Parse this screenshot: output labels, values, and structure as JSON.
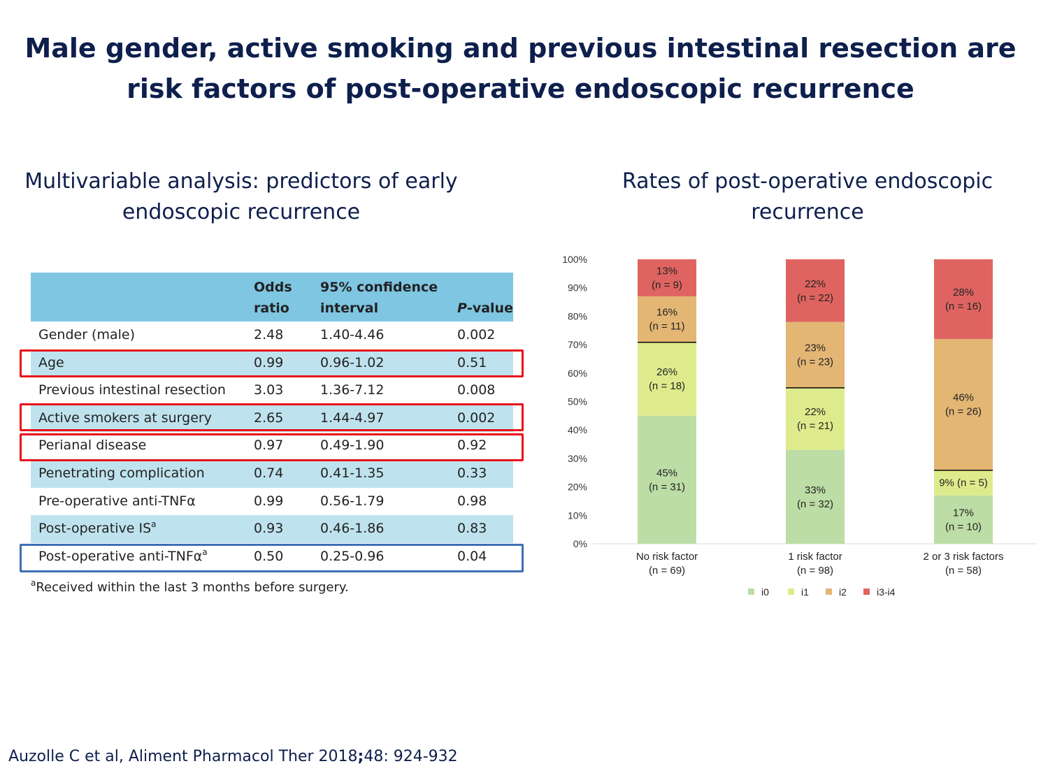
{
  "title": {
    "line1": "Male gender, active smoking and previous intestinal resection are",
    "line2": "risk factors of post-operative endoscopic recurrence"
  },
  "left_subtitle": {
    "line1": "Multivariable analysis: predictors of early",
    "line2": "endoscopic recurrence"
  },
  "right_subtitle": {
    "line1": "Rates of post-operative endoscopic",
    "line2": "recurrence"
  },
  "table": {
    "header": {
      "odds_line1": "Odds",
      "odds_line2": "ratio",
      "ci_line1": "95% confidence",
      "ci_line2": "interval",
      "p_italic": "P",
      "p_rest": "-value"
    },
    "rows": [
      {
        "label": "Gender (male)",
        "sup": "",
        "or": "2.48",
        "ci": "1.40-4.46",
        "p": "0.002"
      },
      {
        "label": "Age",
        "sup": "",
        "or": "0.99",
        "ci": "0.96-1.02",
        "p": "0.51"
      },
      {
        "label": "Previous intestinal resection",
        "sup": "",
        "or": "3.03",
        "ci": "1.36-7.12",
        "p": "0.008"
      },
      {
        "label": "Active smokers at surgery",
        "sup": "",
        "or": "2.65",
        "ci": "1.44-4.97",
        "p": "0.002"
      },
      {
        "label": "Perianal disease",
        "sup": "",
        "or": "0.97",
        "ci": "0.49-1.90",
        "p": "0.92"
      },
      {
        "label": "Penetrating complication",
        "sup": "",
        "or": "0.74",
        "ci": "0.41-1.35",
        "p": "0.33"
      },
      {
        "label": "Pre-operative anti-TNFα",
        "sup": "",
        "or": "0.99",
        "ci": "0.56-1.79",
        "p": "0.98"
      },
      {
        "label": "Post-operative IS",
        "sup": "a",
        "or": "0.93",
        "ci": "0.46-1.86",
        "p": "0.83"
      },
      {
        "label": "Post-operative anti-TNFα",
        "sup": "a",
        "or": "0.50",
        "ci": "0.25-0.96",
        "p": "0.04"
      }
    ],
    "footnote_sup": "a",
    "footnote": "Received within the last 3 months before surgery."
  },
  "citation": {
    "before": "Auzolle C et al, Aliment Pharmacol Ther 2018",
    "sep": ";",
    "after": "48: 924-932"
  },
  "colors": {
    "title": "#0e1f4d",
    "table_header": "#7ec6e2",
    "table_shade": "#bfe3ee",
    "highlight_red": "#e8141b",
    "highlight_blue": "#3d6fb4",
    "i0": "#bcdda6",
    "i1": "#deeb8c",
    "i2": "#e3b674",
    "i3_i4": "#df6461"
  },
  "chart_data": {
    "type": "bar",
    "stacked": true,
    "ylim": [
      0,
      100
    ],
    "yticks": [
      "0%",
      "10%",
      "20%",
      "30%",
      "40%",
      "50%",
      "60%",
      "70%",
      "80%",
      "90%",
      "100%"
    ],
    "categories": [
      {
        "line1": "No risk factor",
        "line2": "(n = 69)"
      },
      {
        "line1": "1 risk factor",
        "line2": "(n = 98)"
      },
      {
        "line1": "2 or 3 risk factors",
        "line2": "(n = 58)"
      }
    ],
    "series": [
      {
        "name": "i0",
        "values": [
          45,
          33,
          17
        ],
        "labels": [
          [
            "45%",
            "(n = 31)"
          ],
          [
            "33%",
            "(n = 32)"
          ],
          [
            "17%",
            "(n = 10)"
          ]
        ]
      },
      {
        "name": "i1",
        "values": [
          26,
          22,
          9
        ],
        "labels": [
          [
            "26%",
            "(n = 18)"
          ],
          [
            "22%",
            "(n = 21)"
          ],
          [
            "9% (n = 5)"
          ]
        ]
      },
      {
        "name": "i2",
        "values": [
          16,
          23,
          46
        ],
        "labels": [
          [
            "16%",
            "(n = 11)"
          ],
          [
            "23%",
            "(n = 23)"
          ],
          [
            "46%",
            "(n = 26)"
          ]
        ]
      },
      {
        "name": "i3-i4",
        "values": [
          13,
          22,
          28
        ],
        "labels": [
          [
            "13%",
            "(n = 9)"
          ],
          [
            "22%",
            "(n = 22)"
          ],
          [
            "28%",
            "(n = 16)"
          ]
        ]
      }
    ],
    "threshold_lines": "between i1 and i2",
    "legend_position": "bottom",
    "grid": false
  }
}
